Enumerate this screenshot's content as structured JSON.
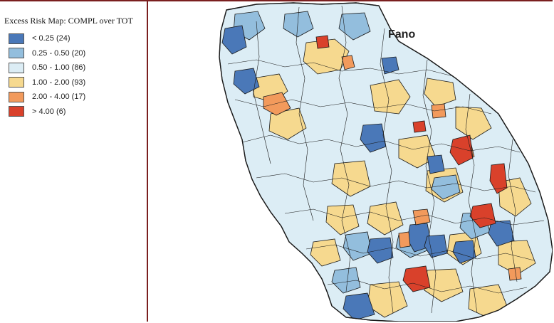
{
  "legend": {
    "title": "Excess Risk Map: COMPL over TOT",
    "items": [
      {
        "label": "< 0.25 (24)",
        "color": "#4a78b8"
      },
      {
        "label": "0.25 - 0.50 (20)",
        "color": "#93bedd"
      },
      {
        "label": "0.50 - 1.00 (86)",
        "color": "#dcedf5"
      },
      {
        "label": "1.00 - 2.00 (93)",
        "color": "#f6d98f"
      },
      {
        "label": "2.00 - 4.00 (17)",
        "color": "#f29a5c"
      },
      {
        "label": "> 4.00 (6)",
        "color": "#d9412b"
      }
    ]
  },
  "map": {
    "city_label": "Fano",
    "base_color": "#dcedf5",
    "border_color": "#1a1a1a"
  }
}
